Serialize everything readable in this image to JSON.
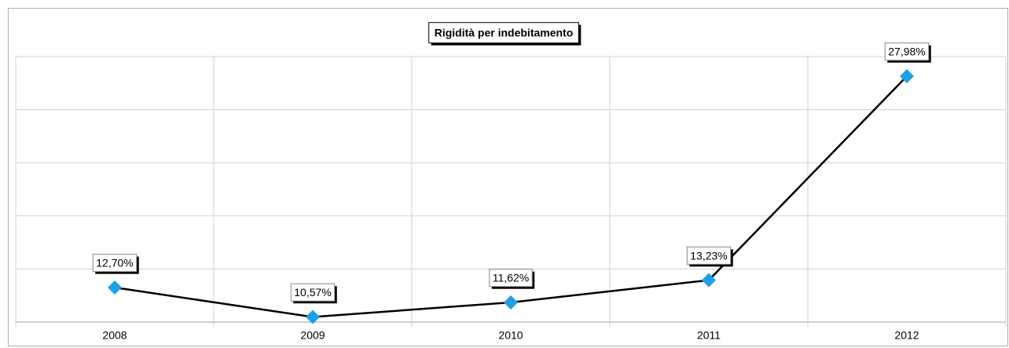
{
  "chart_data": {
    "type": "line",
    "title": "Rigidità per indebitamento",
    "categories": [
      "2008",
      "2009",
      "2010",
      "2011",
      "2012"
    ],
    "series": [
      {
        "name": "Rigidità per indebitamento",
        "color": "#000000",
        "marker_color": "#1ea0e6",
        "values": [
          12.7,
          10.57,
          11.62,
          13.23,
          27.98
        ],
        "value_labels": [
          "12,70%",
          "10,57%",
          "11,62%",
          "13,23%",
          "27,98%"
        ]
      }
    ],
    "ylim": [
      10.2,
      29.4
    ],
    "yticks": [
      10.2,
      14.04,
      17.88,
      21.72,
      25.56,
      29.4
    ],
    "grid": true
  }
}
